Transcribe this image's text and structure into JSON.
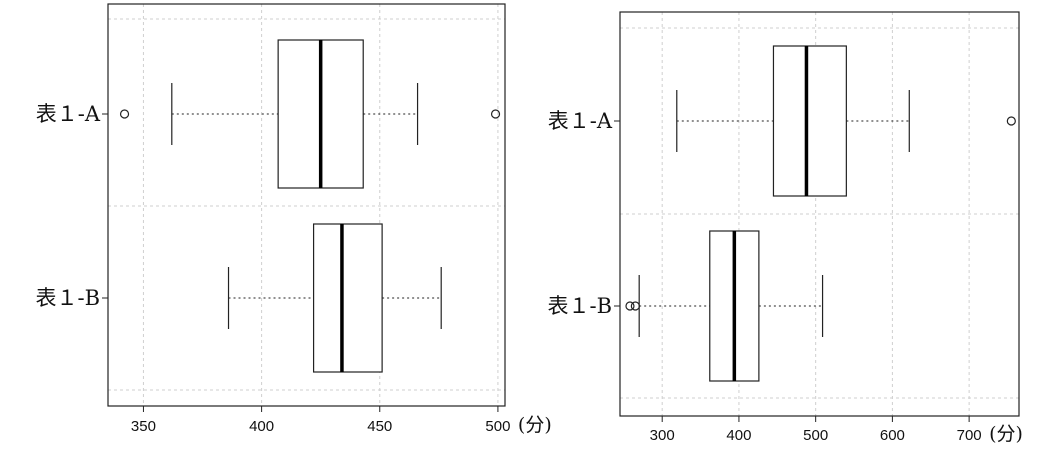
{
  "chart_data": [
    {
      "type": "boxplot",
      "orientation": "horizontal",
      "xlabel": "(分)",
      "xlim": [
        335,
        503
      ],
      "xticks": [
        350,
        400,
        450,
        500
      ],
      "grid": true,
      "categories": [
        "表１-A",
        "表１-B"
      ],
      "boxes": [
        {
          "name": "表１-A",
          "whisker_low": 362,
          "q1": 407,
          "median": 425,
          "q3": 443,
          "whisker_high": 466,
          "outliers": [
            342,
            499
          ]
        },
        {
          "name": "表１-B",
          "whisker_low": 386,
          "q1": 422,
          "median": 434,
          "q3": 451,
          "whisker_high": 476,
          "outliers": []
        }
      ]
    },
    {
      "type": "boxplot",
      "orientation": "horizontal",
      "xlabel": "(分)",
      "xlim": [
        245,
        765
      ],
      "xticks": [
        300,
        400,
        500,
        600,
        700
      ],
      "grid": true,
      "categories": [
        "表１-A",
        "表１-B"
      ],
      "boxes": [
        {
          "name": "表１-A",
          "whisker_low": 319,
          "q1": 445,
          "median": 488,
          "q3": 540,
          "whisker_high": 622,
          "outliers": [
            755
          ]
        },
        {
          "name": "表１-B",
          "whisker_low": 270,
          "q1": 362,
          "median": 394,
          "q3": 426,
          "whisker_high": 509,
          "outliers": [
            258,
            265
          ]
        }
      ]
    }
  ]
}
